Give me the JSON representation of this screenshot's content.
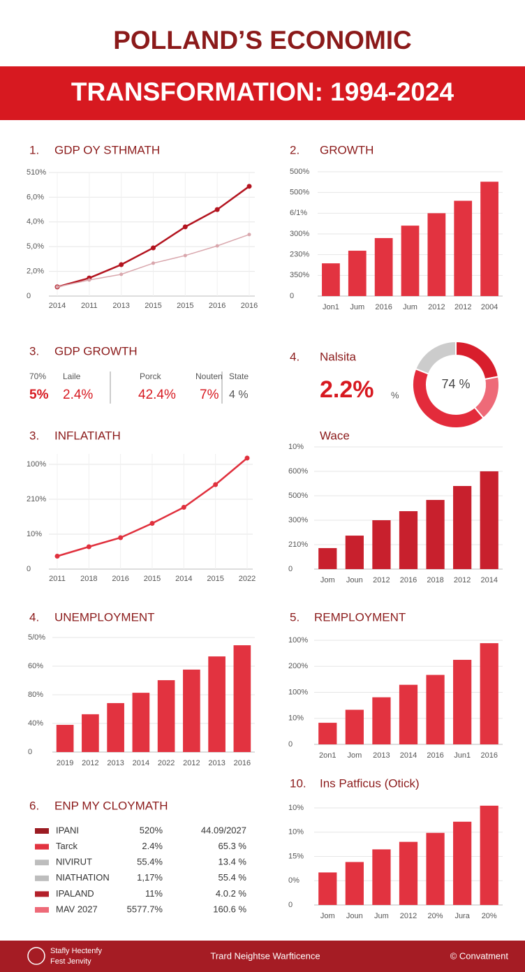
{
  "header": {
    "title_line1": "POLLAND’S ECONOMIC",
    "title_line2": "TRANSFORMATION: 1994-2024"
  },
  "chart_data": [
    {
      "type": "line",
      "number": "1.",
      "title": "GDP OY STHMATH",
      "categories": [
        "2014",
        "2011",
        "2013",
        "2015",
        "2015",
        "2016",
        "2016"
      ],
      "series": [
        {
          "color": "#b3141f",
          "values": [
            0.37,
            0.73,
            1.27,
            1.95,
            2.8,
            3.5,
            4.44
          ]
        },
        {
          "color": "#d9a7ad",
          "values": [
            0.37,
            0.65,
            0.88,
            1.33,
            1.64,
            2.03,
            2.49
          ]
        }
      ],
      "ylim": [
        0,
        5
      ],
      "yticks": [
        0,
        {
          "value": 1,
          "label": "2,0%"
        },
        {
          "value": 2,
          "label": "5,0%"
        },
        {
          "value": 3,
          "label": "4,0%"
        },
        {
          "value": 4,
          "label": "6,0%"
        },
        {
          "value": 5,
          "label": "510%"
        }
      ],
      "grid": true
    },
    {
      "type": "bar",
      "number": "2.",
      "title": "GROWTH",
      "categories": [
        "Jon1",
        "Jum",
        "2016",
        "Jum",
        "2012",
        "2012",
        "2004"
      ],
      "values": [
        1.58,
        2.19,
        2.8,
        3.4,
        4.0,
        4.6,
        5.52
      ],
      "color": "#e23340",
      "ylim": [
        0,
        6
      ],
      "yticks": [
        0,
        {
          "value": 1,
          "label": "350%"
        },
        {
          "value": 2,
          "label": "230%"
        },
        {
          "value": 3,
          "label": "300%"
        },
        {
          "value": 4,
          "label": "6/1%"
        },
        {
          "value": 5,
          "label": "500%"
        },
        {
          "value": 6,
          "label": "500%"
        }
      ],
      "grid": true
    },
    {
      "type": "pie",
      "number": "4.",
      "title": "Nalsita",
      "stat": "2.2%",
      "stat_unit": "%",
      "center_label": "74 %",
      "values": [
        22,
        17,
        42,
        19
      ],
      "colors": [
        "#d81e2c",
        "#ee6a78",
        "#e32b3b",
        "#cccccc"
      ]
    },
    {
      "type": "line",
      "number": "3.",
      "title": "INFLATIATH",
      "categories": [
        "2011",
        "2018",
        "2016",
        "2015",
        "2014",
        "2015",
        "2022"
      ],
      "series": [
        {
          "color": "#e0303d",
          "values": [
            0.37,
            0.64,
            0.9,
            1.31,
            1.77,
            2.42,
            3.18
          ]
        }
      ],
      "ylim": [
        0,
        3.3
      ],
      "yticks": [
        0,
        {
          "value": 1,
          "label": "10%"
        },
        {
          "value": 2,
          "label": "210%"
        },
        {
          "value": 3,
          "label": "100%"
        }
      ],
      "grid": true
    },
    {
      "type": "bar",
      "title": "Wace",
      "categories": [
        "Jom",
        "Joun",
        "2012",
        "2016",
        "2018",
        "2012",
        "2014"
      ],
      "values": [
        0.86,
        1.37,
        2.0,
        2.37,
        2.83,
        3.4,
        4.0
      ],
      "color": "#c8202d",
      "ylim": [
        0,
        5
      ],
      "yticks": [
        0,
        {
          "value": 1,
          "label": "210%"
        },
        {
          "value": 2,
          "label": "300%"
        },
        {
          "value": 3,
          "label": "500%"
        },
        {
          "value": 4,
          "label": "600%"
        },
        {
          "value": 5,
          "label": "10%"
        }
      ],
      "grid": true
    },
    {
      "type": "bar",
      "number": "4.",
      "title": "UNEMPLOYMENT",
      "categories": [
        "2019",
        "2012",
        "2013",
        "2014",
        "2022",
        "2012",
        "2013",
        "2016"
      ],
      "values": [
        0.95,
        1.32,
        1.71,
        2.07,
        2.51,
        2.88,
        3.34,
        3.73
      ],
      "color": "#e23340",
      "ylim": [
        0,
        4
      ],
      "yticks": [
        0,
        {
          "value": 1,
          "label": "40%"
        },
        {
          "value": 2,
          "label": "80%"
        },
        {
          "value": 3,
          "label": "60%"
        },
        {
          "value": 4,
          "label": "5/0%"
        }
      ],
      "grid": true
    },
    {
      "type": "bar",
      "number": "5.",
      "title": "REMPLOYMENT",
      "categories": [
        "2on1",
        "Jom",
        "2013",
        "2014",
        "2016",
        "Jun1",
        "2016"
      ],
      "values": [
        0.83,
        1.33,
        1.81,
        2.29,
        2.67,
        3.25,
        3.89
      ],
      "color": "#e23340",
      "ylim": [
        0,
        4
      ],
      "yticks": [
        0,
        {
          "value": 1,
          "label": "10%"
        },
        {
          "value": 2,
          "label": "100%"
        },
        {
          "value": 3,
          "label": "200%"
        },
        {
          "value": 4,
          "label": "100%"
        }
      ],
      "grid": true
    },
    {
      "type": "bar",
      "number": "10.",
      "title": "Ins Patficus (Otick)",
      "categories": [
        "Jom",
        "Joun",
        "Jum",
        "2012",
        "20%",
        "Jura",
        "20%"
      ],
      "values": [
        1.34,
        1.77,
        2.29,
        2.6,
        2.97,
        3.43,
        4.09
      ],
      "color": "#e23340",
      "ylim": [
        0,
        4.2
      ],
      "yticks": [
        0,
        {
          "value": 1,
          "label": "0%"
        },
        {
          "value": 2,
          "label": "15%"
        },
        {
          "value": 3,
          "label": "10%"
        },
        {
          "value": 4,
          "label": "10%"
        }
      ],
      "grid": true
    }
  ],
  "stats": {
    "number": "3.",
    "title": "GDP GROWTH",
    "items": [
      {
        "label": "70%",
        "value": "5%"
      },
      {
        "label": "Laile",
        "value": "2.4%"
      },
      {
        "label": "Porck",
        "value": "42.4%"
      },
      {
        "label": "Nouten",
        "value": "7%"
      },
      {
        "label": "State",
        "value": "4 %"
      }
    ]
  },
  "table": {
    "number": "6.",
    "title": "ENP MY CLOYMATH",
    "rows": [
      [
        "IPANI",
        "520%",
        "44.09/2027"
      ],
      [
        "Tarck",
        "2.4%",
        "65.3 %"
      ],
      [
        "NIVIRUT",
        "55.4%",
        "13.4 %"
      ],
      [
        "NIATHATION",
        "1,17%",
        "55.4 %"
      ],
      [
        "IPALAND",
        "11%",
        "4.0.2 %"
      ],
      [
        "MAV 2027",
        "5577.7%",
        "160.6 %"
      ]
    ],
    "colors": [
      "#9b1b22",
      "#e23340",
      "#bdbdbd",
      "#bdbdbd",
      "#b3202a",
      "#ee6a78"
    ]
  },
  "footer": {
    "brand_line1": "Stafly Hectenfy",
    "brand_line2": "Fest Jenvity",
    "center": "Trard Neightse Warfticence",
    "right": "© Convatment"
  }
}
